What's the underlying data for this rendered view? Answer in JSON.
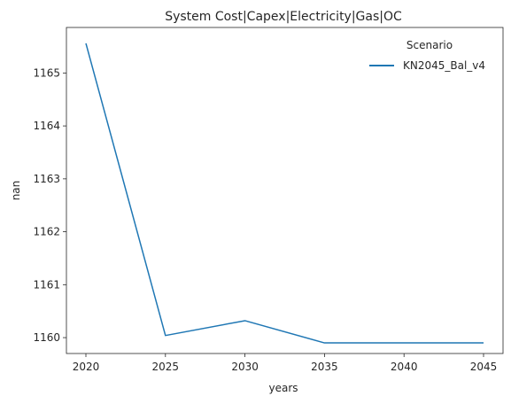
{
  "chart_data": {
    "type": "line",
    "title": "System Cost|Capex|Electricity|Gas|OC",
    "xlabel": "years",
    "ylabel": "nan",
    "x": [
      2020,
      2025,
      2030,
      2035,
      2040,
      2045
    ],
    "x_ticks": [
      "2020",
      "2025",
      "2030",
      "2035",
      "2040",
      "2045"
    ],
    "y_ticks": [
      "1160",
      "1161",
      "1162",
      "1163",
      "1164",
      "1165"
    ],
    "ylim": [
      1159.7,
      1165.86
    ],
    "grid": false,
    "legend": {
      "title": "Scenario",
      "placement": "top-right"
    },
    "series": [
      {
        "name": "KN2045_Bal_v4",
        "color": "#1f77b4",
        "values": [
          1165.56,
          1160.04,
          1160.32,
          1159.9,
          1159.9,
          1159.9
        ]
      }
    ]
  }
}
